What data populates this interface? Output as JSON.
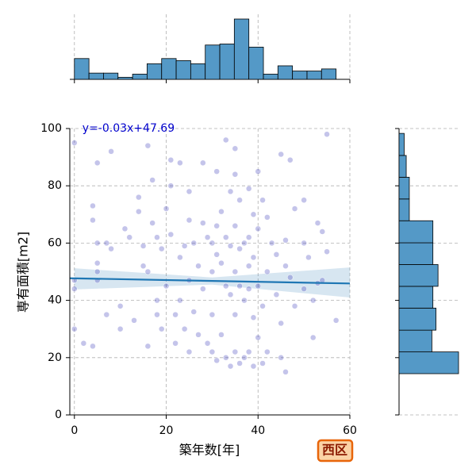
{
  "chart_data": {
    "type": "scatter",
    "xlabel": "築年数[年]",
    "ylabel": "専有面積[m2]",
    "annotation": "y=-0.03x+47.69",
    "badge": "西区",
    "xlim": [
      -1,
      60
    ],
    "ylim": [
      0,
      100
    ],
    "xticks": [
      0,
      20,
      40,
      60
    ],
    "yticks": [
      0,
      20,
      40,
      60,
      80,
      100
    ],
    "grid": true,
    "point_color": "#3a3ab8",
    "line_color": "#1f77b4",
    "hist_color": "#5499c7",
    "fit": {
      "slope": -0.03,
      "intercept": 47.69
    },
    "ci": {
      "x": [
        0,
        30,
        60
      ],
      "lower": [
        43.8,
        45.5,
        41
      ],
      "upper": [
        51.2,
        48,
        51.5
      ]
    },
    "x": [
      0,
      0,
      0,
      0,
      2,
      4,
      4,
      4,
      5,
      5,
      5,
      5,
      5,
      7,
      7,
      8,
      8,
      10,
      10,
      11,
      12,
      13,
      14,
      14,
      15,
      15,
      16,
      16,
      16,
      17,
      17,
      18,
      18,
      18,
      19,
      19,
      20,
      20,
      21,
      21,
      21,
      22,
      22,
      23,
      23,
      23,
      24,
      24,
      25,
      25,
      25,
      25,
      26,
      26,
      27,
      27,
      28,
      28,
      28,
      29,
      29,
      30,
      30,
      30,
      30,
      31,
      31,
      31,
      31,
      32,
      32,
      32,
      33,
      33,
      33,
      33,
      34,
      34,
      34,
      34,
      35,
      35,
      35,
      35,
      35,
      35,
      36,
      36,
      36,
      36,
      37,
      37,
      37,
      38,
      38,
      38,
      38,
      38,
      39,
      39,
      39,
      39,
      40,
      40,
      40,
      40,
      41,
      41,
      41,
      42,
      42,
      42,
      43,
      44,
      44,
      45,
      45,
      45,
      46,
      46,
      46,
      47,
      47,
      48,
      48,
      50,
      50,
      50,
      51,
      52,
      52,
      53,
      53,
      54,
      54,
      55,
      55,
      57
    ],
    "y": [
      95,
      47,
      44,
      30,
      25,
      24,
      73,
      68,
      88,
      60,
      53,
      50,
      47,
      60,
      35,
      92,
      58,
      38,
      30,
      65,
      62,
      33,
      76,
      71,
      59,
      52,
      94,
      50,
      24,
      67,
      82,
      62,
      40,
      35,
      58,
      30,
      72,
      45,
      89,
      80,
      63,
      35,
      25,
      88,
      55,
      40,
      59,
      30,
      78,
      68,
      47,
      22,
      60,
      36,
      52,
      28,
      88,
      67,
      44,
      62,
      25,
      60,
      50,
      35,
      22,
      85,
      66,
      56,
      19,
      71,
      53,
      28,
      96,
      62,
      45,
      20,
      78,
      59,
      42,
      17,
      93,
      84,
      66,
      50,
      35,
      22,
      75,
      58,
      45,
      18,
      60,
      40,
      20,
      79,
      62,
      52,
      44,
      22,
      70,
      55,
      34,
      17,
      85,
      65,
      45,
      27,
      75,
      38,
      18,
      69,
      50,
      22,
      60,
      56,
      42,
      91,
      32,
      20,
      61,
      52,
      15,
      89,
      48,
      72,
      38,
      75,
      60,
      44,
      55,
      40,
      27,
      67,
      46,
      64,
      47,
      98,
      57,
      33
    ],
    "top_hist": {
      "bins": [
        0,
        3.17,
        6.33,
        9.5,
        12.67,
        15.83,
        19,
        22.17,
        25.33,
        28.5,
        31.67,
        34.83,
        38,
        41.17,
        44.33,
        47.5,
        50.67,
        53.83,
        57
      ],
      "counts": [
        20,
        6,
        6,
        2,
        5,
        15,
        20,
        18,
        15,
        33,
        34,
        58,
        31,
        5,
        13,
        8,
        8,
        10
      ]
    },
    "right_hist": {
      "bins": [
        14.4,
        22,
        29.6,
        37.3,
        44.9,
        52.5,
        60.1,
        67.8,
        75.4,
        83,
        90.6,
        98.3
      ],
      "counts": [
        58,
        32,
        36,
        33,
        38,
        33,
        33,
        10,
        10,
        7,
        5
      ]
    }
  }
}
